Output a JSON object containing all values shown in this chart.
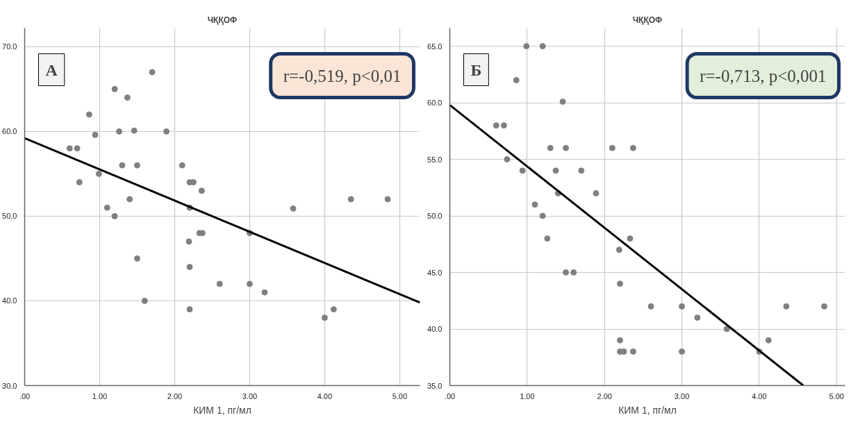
{
  "chart_data": [
    {
      "type": "scatter",
      "title": "ЧҚҚОФ",
      "xlabel": "КИМ 1, пг/мл",
      "annotations": [
        "А",
        "r=-0,519, p<0,01"
      ],
      "xlim": [
        0,
        5.27
      ],
      "ylim": [
        30,
        72.2
      ],
      "xticks": [
        {
          "value": 0,
          "label": ".00"
        },
        {
          "value": 1,
          "label": "1.00"
        },
        {
          "value": 2,
          "label": "2.00"
        },
        {
          "value": 3,
          "label": "3.00"
        },
        {
          "value": 4,
          "label": "4.00"
        },
        {
          "value": 5,
          "label": "5.00"
        }
      ],
      "yticks": [
        {
          "value": 30,
          "label": "30.0"
        },
        {
          "value": 40,
          "label": "40.0"
        },
        {
          "value": 50,
          "label": "50.0"
        },
        {
          "value": 60,
          "label": "60.0"
        },
        {
          "value": 70,
          "label": "70.0"
        }
      ],
      "grid": true,
      "series": [
        {
          "marker": "circle",
          "color": "#808080",
          "x": [
            0.6,
            0.7,
            0.73,
            0.86,
            0.94,
            0.99,
            1.1,
            1.2,
            1.2,
            1.26,
            1.3,
            1.37,
            1.4,
            1.46,
            1.5,
            1.5,
            1.6,
            1.7,
            1.89,
            2.1,
            2.2,
            2.25,
            2.36,
            2.2,
            2.19,
            2.2,
            2.2,
            2.33,
            2.37,
            2.6,
            3.0,
            3.0,
            3.2,
            3.58,
            4.0,
            4.12,
            4.35,
            4.84
          ],
          "values": [
            58,
            58,
            54,
            62,
            59.6,
            55,
            51,
            65,
            50,
            60,
            56,
            64,
            52,
            60.1,
            56,
            45,
            40,
            67,
            60,
            56,
            54,
            54,
            53,
            51,
            47,
            44,
            39,
            48,
            48,
            42,
            48,
            42,
            41,
            50.9,
            38,
            39,
            52,
            52
          ]
        },
        {
          "type": "line",
          "color": "#000000",
          "x": [
            0,
            5.27
          ],
          "values": [
            59.2,
            39.8
          ]
        }
      ]
    },
    {
      "type": "scatter",
      "title": "ЧҚҚОФ",
      "xlabel": "КИМ 1, пг/мл",
      "annotations": [
        "Б",
        "r=-0,713, p<0,001"
      ],
      "xlim": [
        0,
        5.11
      ],
      "ylim": [
        35,
        66.6
      ],
      "xticks": [
        {
          "value": 0,
          "label": ".00"
        },
        {
          "value": 1,
          "label": "1.00"
        },
        {
          "value": 2,
          "label": "2.00"
        },
        {
          "value": 3,
          "label": "3.00"
        },
        {
          "value": 4,
          "label": "4.00"
        },
        {
          "value": 5,
          "label": "5.00"
        }
      ],
      "yticks": [
        {
          "value": 35,
          "label": "35.0"
        },
        {
          "value": 40,
          "label": "40.0"
        },
        {
          "value": 45,
          "label": "45.0"
        },
        {
          "value": 50,
          "label": "50.0"
        },
        {
          "value": 55,
          "label": "55.0"
        },
        {
          "value": 60,
          "label": "60.0"
        },
        {
          "value": 65,
          "label": "65.0"
        }
      ],
      "grid": true,
      "series": [
        {
          "marker": "circle",
          "color": "#808080",
          "x": [
            0.6,
            0.7,
            0.74,
            0.86,
            0.94,
            0.99,
            1.1,
            1.2,
            1.2,
            1.26,
            1.3,
            1.37,
            1.4,
            1.46,
            1.5,
            1.5,
            1.6,
            1.7,
            1.89,
            2.1,
            2.37,
            2.19,
            2.33,
            2.2,
            2.2,
            2.2,
            2.25,
            2.37,
            2.6,
            3.0,
            3.0,
            3.2,
            3.58,
            4.0,
            4.12,
            4.35,
            4.84
          ],
          "values": [
            58,
            58,
            55,
            62,
            54,
            65,
            51,
            65,
            50,
            48,
            56,
            54,
            52,
            60.1,
            56,
            45,
            45,
            54,
            52,
            56,
            56,
            47,
            48,
            44,
            39,
            38,
            38,
            38,
            42,
            42,
            38,
            41,
            40,
            38,
            39,
            42,
            42
          ]
        },
        {
          "type": "line",
          "color": "#000000",
          "x": [
            0,
            4.57
          ],
          "values": [
            59.8,
            35
          ]
        }
      ]
    }
  ]
}
